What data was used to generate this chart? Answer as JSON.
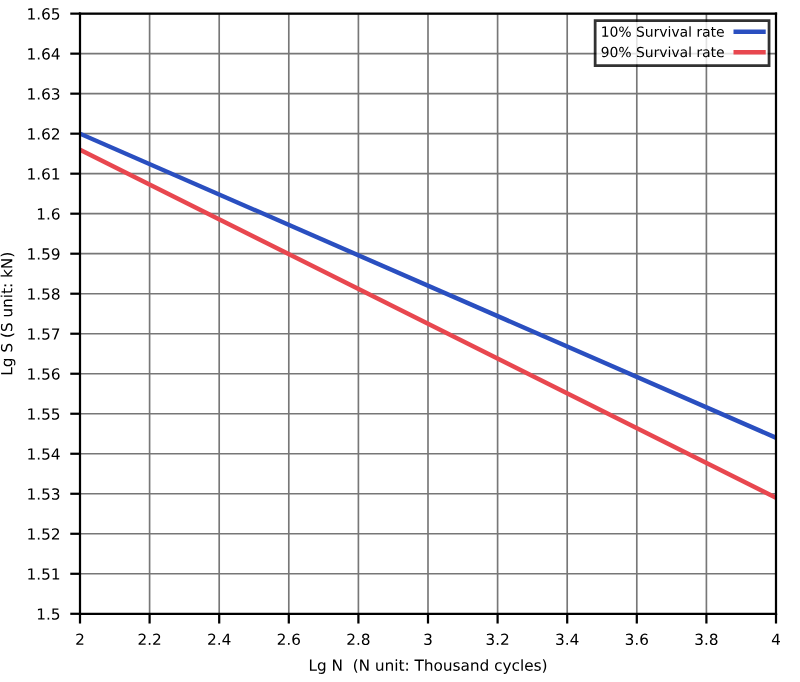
{
  "chart_data": {
    "type": "line",
    "xlabel": "Lg N  (N unit: Thousand cycles)",
    "ylabel": "Lg S (S unit: kN)",
    "x": [
      2,
      4
    ],
    "series": [
      {
        "name": "10% Survival rate",
        "color": "#2a4fc0",
        "values": [
          1.62,
          1.544
        ]
      },
      {
        "name": "90% Survival rate",
        "color": "#e8474f",
        "values": [
          1.616,
          1.529
        ]
      }
    ],
    "xlim": [
      2,
      4
    ],
    "xticks": [
      2,
      2.2,
      2.4,
      2.6,
      2.8,
      3,
      3.2,
      3.4,
      3.6,
      3.8,
      4
    ],
    "ylim": [
      1.5,
      1.65
    ],
    "yticks": [
      1.5,
      1.51,
      1.52,
      1.53,
      1.54,
      1.55,
      1.56,
      1.57,
      1.58,
      1.59,
      1.6,
      1.61,
      1.62,
      1.63,
      1.64,
      1.65
    ],
    "grid": true,
    "legend": "top right",
    "marker": "none",
    "line_style": "solid"
  }
}
